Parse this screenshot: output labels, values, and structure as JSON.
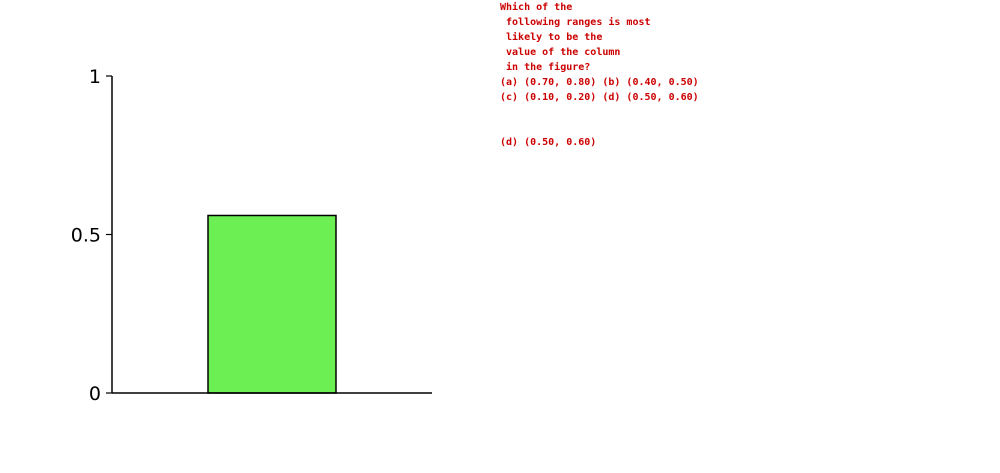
{
  "chart_data": {
    "type": "bar",
    "categories": [
      ""
    ],
    "values": [
      0.56
    ],
    "ylim": [
      0,
      1
    ],
    "yticks": [
      0,
      0.5,
      1
    ],
    "ytick_labels": [
      "0",
      "0.5",
      "1"
    ],
    "bar_color": "#6cef52",
    "grid": false,
    "title": "",
    "xlabel": "",
    "ylabel": ""
  },
  "question": {
    "lines": [
      "Which of the",
      " following ranges is most",
      " likely to be the",
      " value of the column",
      " in the figure?",
      "(a) (0.70, 0.80) (b) (0.40, 0.50)",
      "(c) (0.10, 0.20) (d) (0.50, 0.60)"
    ],
    "answer": "(d) (0.50, 0.60)",
    "color": "#cc0000"
  }
}
